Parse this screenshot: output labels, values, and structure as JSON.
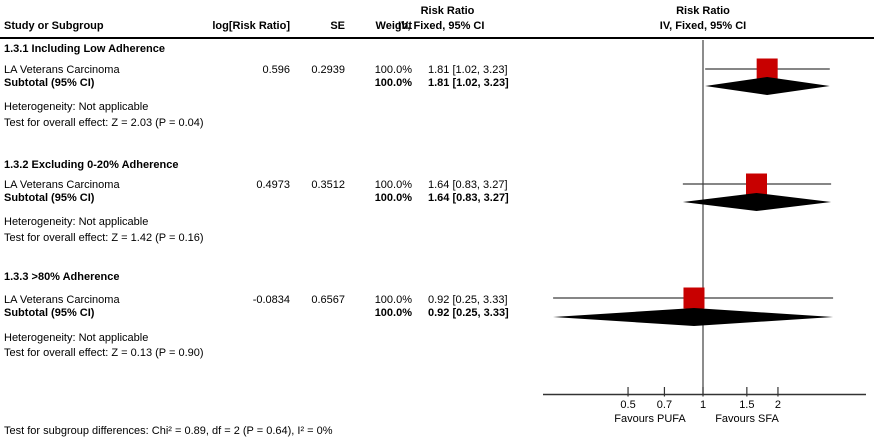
{
  "columns": {
    "study": "Study or Subgroup",
    "log_rr": "log[Risk Ratio]",
    "se": "SE",
    "weight": "Weight",
    "effect_title": "Risk Ratio",
    "effect_sub": "IV, Fixed, 95% CI",
    "plot_title": "Risk Ratio",
    "plot_sub": "IV, Fixed, 95% CI"
  },
  "sections": [
    {
      "title": "1.3.1 Including Low Adherence",
      "study": {
        "name": "LA Veterans Carcinoma",
        "log_rr": "0.596",
        "se": "0.2939",
        "weight": "100.0%",
        "ci_text": "1.81 [1.02, 3.23]"
      },
      "subtotal": {
        "label": "Subtotal (95% CI)",
        "weight": "100.0%",
        "ci_text": "1.81 [1.02, 3.23]"
      },
      "heterogeneity": "Heterogeneity: Not applicable",
      "overall": "Test for overall effect: Z = 2.03 (P = 0.04)"
    },
    {
      "title": "1.3.2 Excluding 0-20% Adherence",
      "study": {
        "name": "LA Veterans Carcinoma",
        "log_rr": "0.4973",
        "se": "0.3512",
        "weight": "100.0%",
        "ci_text": "1.64 [0.83, 3.27]"
      },
      "subtotal": {
        "label": "Subtotal (95% CI)",
        "weight": "100.0%",
        "ci_text": "1.64 [0.83, 3.27]"
      },
      "heterogeneity": "Heterogeneity: Not applicable",
      "overall": "Test for overall effect: Z = 1.42 (P = 0.16)"
    },
    {
      "title": "1.3.3 >80% Adherence",
      "study": {
        "name": "LA Veterans Carcinoma",
        "log_rr": "-0.0834",
        "se": "0.6567",
        "weight": "100.0%",
        "ci_text": "0.92 [0.25, 3.33]"
      },
      "subtotal": {
        "label": "Subtotal (95% CI)",
        "weight": "100.0%",
        "ci_text": "0.92 [0.25, 3.33]"
      },
      "heterogeneity": "Heterogeneity: Not applicable",
      "overall": "Test for overall effect: Z = 0.13 (P = 0.90)"
    }
  ],
  "footer": "Test for subgroup differences: Chi² = 0.89, df = 2 (P = 0.64), I² = 0%",
  "axis": {
    "tick_labels": [
      "0.5",
      "0.7",
      "1",
      "1.5",
      "2"
    ],
    "favours_left": "Favours PUFA",
    "favours_right": "Favours SFA"
  },
  "colors": {
    "square": "#c80000",
    "diamond": "#000000",
    "ci_line": "#3f3f3f",
    "axis_line": "#333333",
    "header_rule": "#000000"
  },
  "chart_data": {
    "type": "forest",
    "effect_measure": "Risk Ratio",
    "method": "IV, Fixed, 95% CI",
    "x_scale": "log",
    "x_ticks": [
      0.5,
      0.7,
      1,
      1.5,
      2
    ],
    "xlabel_left": "Favours PUFA",
    "xlabel_right": "Favours SFA",
    "subgroups": [
      {
        "name": "1.3.1 Including Low Adherence",
        "studies": [
          {
            "study": "LA Veterans Carcinoma",
            "log_rr": 0.596,
            "se": 0.2939,
            "weight_pct": 100.0,
            "rr": 1.81,
            "ci_low": 1.02,
            "ci_high": 3.23
          }
        ],
        "subtotal": {
          "rr": 1.81,
          "ci_low": 1.02,
          "ci_high": 3.23,
          "weight_pct": 100.0,
          "z": 2.03,
          "p": 0.04
        },
        "heterogeneity": "Not applicable"
      },
      {
        "name": "1.3.2 Excluding 0-20% Adherence",
        "studies": [
          {
            "study": "LA Veterans Carcinoma",
            "log_rr": 0.4973,
            "se": 0.3512,
            "weight_pct": 100.0,
            "rr": 1.64,
            "ci_low": 0.83,
            "ci_high": 3.27
          }
        ],
        "subtotal": {
          "rr": 1.64,
          "ci_low": 0.83,
          "ci_high": 3.27,
          "weight_pct": 100.0,
          "z": 1.42,
          "p": 0.16
        },
        "heterogeneity": "Not applicable"
      },
      {
        "name": "1.3.3 >80% Adherence",
        "studies": [
          {
            "study": "LA Veterans Carcinoma",
            "log_rr": -0.0834,
            "se": 0.6567,
            "weight_pct": 100.0,
            "rr": 0.92,
            "ci_low": 0.25,
            "ci_high": 3.33
          }
        ],
        "subtotal": {
          "rr": 0.92,
          "ci_low": 0.25,
          "ci_high": 3.33,
          "weight_pct": 100.0,
          "z": 0.13,
          "p": 0.9
        },
        "heterogeneity": "Not applicable"
      }
    ],
    "subgroup_differences": {
      "chi2": 0.89,
      "df": 2,
      "p": 0.64,
      "i2_pct": 0
    }
  }
}
